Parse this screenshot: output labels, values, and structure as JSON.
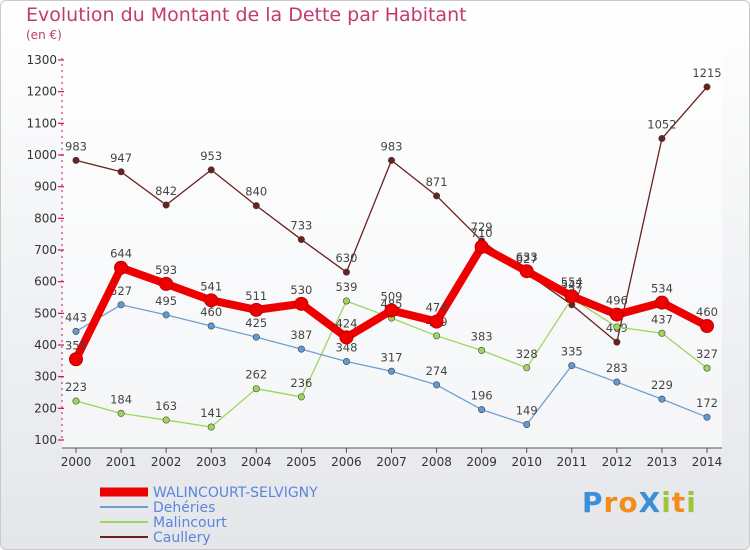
{
  "title": "Evolution du Montant de la Dette par Habitant",
  "subtitle": "(en €)",
  "logo": {
    "text": "ProXiti",
    "letters": [
      "P",
      "r",
      "o",
      "X",
      "i",
      "t",
      "i"
    ],
    "colors": [
      "#3a8fd6",
      "#f28c1c",
      "#f28c1c",
      "#3a8fd6",
      "#9ec43b",
      "#f28c1c",
      "#9ec43b"
    ]
  },
  "chart_data": {
    "type": "line",
    "title": "Evolution du Montant de la Dette par Habitant",
    "ylabel": "(en €)",
    "xlabel": "",
    "ylim": [
      100,
      1300
    ],
    "yticks": [
      100,
      200,
      300,
      400,
      500,
      600,
      700,
      800,
      900,
      1000,
      1100,
      1200,
      1300
    ],
    "x": [
      "2000",
      "2001",
      "2002",
      "2003",
      "2004",
      "2005",
      "2006",
      "2007",
      "2008",
      "2009",
      "2010",
      "2011",
      "2012",
      "2013",
      "2014"
    ],
    "legend_position": "bottom-left",
    "series": [
      {
        "name": "Caullery",
        "color": "#6b1f1f",
        "marker": "#6b1f1f",
        "values": [
          983,
          947,
          842,
          953,
          840,
          733,
          630,
          983,
          871,
          729,
          627,
          527,
          409,
          1052,
          1215
        ],
        "labels": [
          "983",
          "947",
          "842",
          "953",
          "840",
          "733",
          "630",
          "983",
          "871",
          "729",
          "627",
          "527",
          "409",
          "1052",
          "1215"
        ]
      },
      {
        "name": "Malincourt",
        "color": "#9cd65a",
        "marker": "#9cd65a",
        "values": [
          223,
          184,
          163,
          141,
          262,
          236,
          539,
          485,
          429,
          383,
          328,
          547,
          457,
          437,
          327
        ],
        "labels": [
          "223",
          "184",
          "163",
          "141",
          "262",
          "236",
          "539",
          "485",
          "429",
          "383",
          "328",
          "547",
          "457",
          "437",
          "327"
        ]
      },
      {
        "name": "Dehéries",
        "color": "#6ea0cf",
        "marker": "#5f9ad4",
        "values": [
          443,
          527,
          495,
          460,
          425,
          387,
          348,
          317,
          274,
          196,
          149,
          335,
          283,
          229,
          172
        ],
        "labels": [
          "443",
          "527",
          "495",
          "460",
          "425",
          "387",
          "348",
          "317",
          "274",
          "196",
          "149",
          "335",
          "283",
          "229",
          "172"
        ]
      },
      {
        "name": "WALINCOURT-SELVIGNY",
        "color": "#ee0000",
        "marker": "#ee0000",
        "values": [
          355,
          644,
          593,
          541,
          511,
          530,
          424,
          509,
          474,
          710,
          633,
          554,
          496,
          534,
          460
        ],
        "labels": [
          "355",
          "644",
          "593",
          "541",
          "511",
          "530",
          "424",
          "509",
          "474",
          "710",
          "633",
          "554",
          "496",
          "534",
          "460"
        ]
      }
    ],
    "legend": [
      "WALINCOURT-SELVIGNY",
      "Dehéries",
      "Malincourt",
      "Caullery"
    ]
  }
}
